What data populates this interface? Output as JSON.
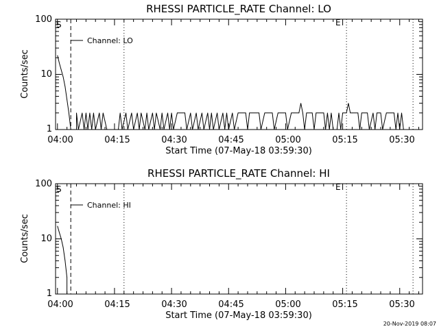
{
  "chart_data": [
    {
      "type": "line",
      "title": "RHESSI PARTICLE_RATE Channel: LO",
      "xlabel": "Start Time (07-May-18 03:59:30)",
      "ylabel": "Counts/sec",
      "yscale": "log",
      "ylim": [
        1,
        100
      ],
      "y_ticks": [
        "1",
        "10",
        "100"
      ],
      "xlim": [
        "03:59:30",
        "05:36:00"
      ],
      "x_ticks": [
        "04:00",
        "04:15",
        "04:30",
        "04:45",
        "05:00",
        "05:15",
        "05:30"
      ],
      "legend": "Channel: LO",
      "start_marker": "S",
      "end_marker": "E",
      "vlines": {
        "dashed": [
          "04:03:30"
        ],
        "dotted": [
          "04:17:30",
          "05:16:00",
          "05:33:30"
        ]
      },
      "series": [
        {
          "name": "",
          "values": [
            [
              "04:00:00",
              22
            ],
            [
              "04:00:30",
              16
            ],
            [
              "04:01:00",
              12
            ],
            [
              "04:01:30",
              9
            ],
            [
              "04:02:00",
              6
            ],
            [
              "04:02:30",
              3.5
            ],
            [
              "04:03:00",
              2
            ],
            [
              "04:03:30",
              1
            ],
            [
              "04:05:00",
              1
            ],
            [
              "04:05:00",
              2
            ],
            [
              "04:05:30",
              1
            ],
            [
              "04:06:30",
              2
            ],
            [
              "04:07:00",
              1
            ],
            [
              "04:07:30",
              2
            ],
            [
              "04:08:00",
              1
            ],
            [
              "04:08:30",
              2
            ],
            [
              "04:09:00",
              1
            ],
            [
              "04:09:30",
              2
            ],
            [
              "04:10:00",
              1
            ],
            [
              "04:11:00",
              2
            ],
            [
              "04:11:30",
              1
            ],
            [
              "04:12:00",
              2
            ],
            [
              "04:13:00",
              1
            ],
            [
              "04:16:00",
              1
            ],
            [
              "04:16:30",
              2
            ],
            [
              "04:17:00",
              1
            ],
            [
              "04:18:00",
              2
            ],
            [
              "04:18:30",
              1
            ],
            [
              "04:19:30",
              2
            ],
            [
              "04:20:00",
              1
            ],
            [
              "04:21:00",
              2
            ],
            [
              "04:21:30",
              1
            ],
            [
              "04:22:00",
              2
            ],
            [
              "04:23:00",
              1
            ],
            [
              "04:23:30",
              2
            ],
            [
              "04:24:00",
              1
            ],
            [
              "04:25:00",
              2
            ],
            [
              "04:25:30",
              1
            ],
            [
              "04:26:00",
              2
            ],
            [
              "04:27:00",
              1
            ],
            [
              "04:27:30",
              2
            ],
            [
              "04:28:00",
              1
            ],
            [
              "04:29:00",
              2
            ],
            [
              "04:29:30",
              1
            ],
            [
              "04:30:00",
              2
            ],
            [
              "04:30:30",
              1
            ],
            [
              "04:31:30",
              2
            ],
            [
              "04:33:30",
              2
            ],
            [
              "04:34:00",
              1
            ],
            [
              "04:35:00",
              2
            ],
            [
              "04:35:30",
              1
            ],
            [
              "04:36:30",
              2
            ],
            [
              "04:37:00",
              1
            ],
            [
              "04:38:00",
              2
            ],
            [
              "04:38:30",
              1
            ],
            [
              "04:39:30",
              2
            ],
            [
              "04:40:00",
              1
            ],
            [
              "04:40:30",
              2
            ],
            [
              "04:41:00",
              1
            ],
            [
              "04:42:00",
              2
            ],
            [
              "04:42:30",
              1
            ],
            [
              "04:43:30",
              2
            ],
            [
              "04:44:00",
              1
            ],
            [
              "04:44:30",
              2
            ],
            [
              "04:45:00",
              1
            ],
            [
              "04:46:00",
              2
            ],
            [
              "04:46:30",
              1
            ],
            [
              "04:47:30",
              2
            ],
            [
              "04:49:30",
              2
            ],
            [
              "04:50:00",
              1
            ],
            [
              "04:50:30",
              2
            ],
            [
              "04:53:00",
              2
            ],
            [
              "04:53:30",
              1
            ],
            [
              "04:54:30",
              2
            ],
            [
              "04:56:30",
              2
            ],
            [
              "04:57:00",
              1
            ],
            [
              "04:58:00",
              2
            ],
            [
              "05:00:00",
              2
            ],
            [
              "05:00:30",
              1
            ],
            [
              "05:01:30",
              2
            ],
            [
              "05:03:30",
              2
            ],
            [
              "05:04:00",
              3
            ],
            [
              "05:04:30",
              2
            ],
            [
              "05:05:00",
              1
            ],
            [
              "05:05:30",
              2
            ],
            [
              "05:07:00",
              2
            ],
            [
              "05:07:30",
              1
            ],
            [
              "05:08:00",
              2
            ],
            [
              "05:10:00",
              2
            ],
            [
              "05:10:30",
              1
            ],
            [
              "05:11:00",
              2
            ],
            [
              "05:11:30",
              1
            ],
            [
              "05:12:00",
              2
            ],
            [
              "05:12:30",
              1
            ],
            [
              "05:13:30",
              1
            ],
            [
              "05:14:00",
              2
            ],
            [
              "05:14:30",
              1
            ],
            [
              "05:15:00",
              2
            ],
            [
              "05:16:00",
              2
            ],
            [
              "05:16:30",
              3
            ],
            [
              "05:17:00",
              2
            ],
            [
              "05:17:30",
              2
            ],
            [
              "05:19:00",
              2
            ],
            [
              "05:19:30",
              1
            ],
            [
              "05:20:00",
              2
            ],
            [
              "05:21:30",
              2
            ],
            [
              "05:22:00",
              1
            ],
            [
              "05:23:00",
              2
            ],
            [
              "05:23:30",
              1
            ],
            [
              "05:24:00",
              2
            ],
            [
              "05:25:00",
              2
            ],
            [
              "05:25:30",
              1
            ],
            [
              "05:26:30",
              2
            ],
            [
              "05:28:30",
              2
            ],
            [
              "05:29:00",
              1
            ],
            [
              "05:29:30",
              2
            ],
            [
              "05:30:00",
              1
            ],
            [
              "05:30:30",
              2
            ],
            [
              "05:31:00",
              1
            ]
          ]
        }
      ]
    },
    {
      "type": "line",
      "title": "RHESSI PARTICLE_RATE Channel: HI",
      "xlabel": "Start Time (07-May-18 03:59:30)",
      "ylabel": "Counts/sec",
      "yscale": "log",
      "ylim": [
        1,
        100
      ],
      "y_ticks": [
        "1",
        "10",
        "100"
      ],
      "xlim": [
        "03:59:30",
        "05:36:00"
      ],
      "x_ticks": [
        "04:00",
        "04:15",
        "04:30",
        "04:45",
        "05:00",
        "05:15",
        "05:30"
      ],
      "legend": "Channel: HI",
      "start_marker": "S",
      "end_marker": "E",
      "vlines": {
        "dashed": [
          "04:03:30"
        ],
        "dotted": [
          "04:17:30",
          "05:16:00",
          "05:33:30"
        ]
      },
      "series": [
        {
          "name": "",
          "values": [
            [
              "04:00:00",
              17
            ],
            [
              "04:00:30",
              13
            ],
            [
              "04:01:00",
              10
            ],
            [
              "04:01:30",
              7
            ],
            [
              "04:02:00",
              4
            ],
            [
              "04:02:30",
              2
            ],
            [
              "04:02:30",
              1
            ]
          ]
        }
      ]
    }
  ],
  "footer": {
    "timestamp": "20-Nov-2019 08:07"
  }
}
